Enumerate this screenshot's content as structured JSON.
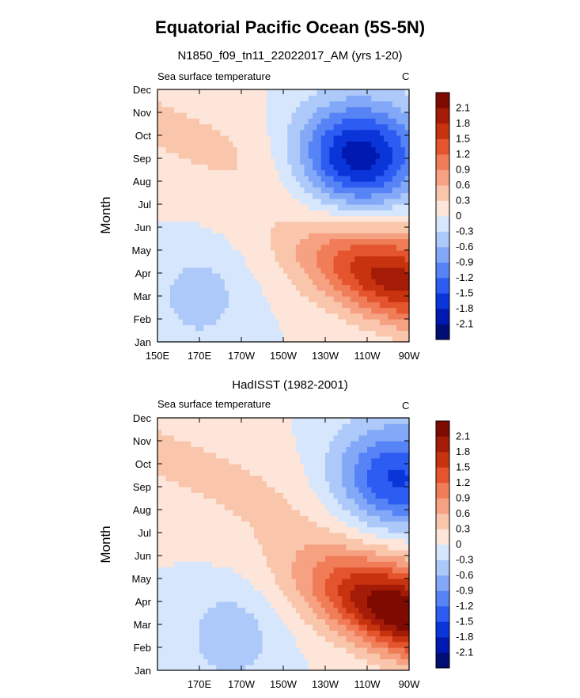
{
  "figure": {
    "title": "Equatorial Pacific Ocean (5S-5N)"
  },
  "chart_data": [
    {
      "type": "heatmap",
      "title": "N1850_f09_tn11_22022017_AM (yrs 1-20)",
      "left_label": "Sea surface temperature",
      "right_label": "C",
      "xlabel": "",
      "ylabel": "Month",
      "x_tick_labels": [
        "150E",
        "170E",
        "170W",
        "150W",
        "130W",
        "110W",
        "90W"
      ],
      "x_tick_lon": [
        150,
        170,
        190,
        210,
        230,
        250,
        270
      ],
      "xlim": [
        150,
        270
      ],
      "y_tick_labels": [
        "Jan",
        "Feb",
        "Mar",
        "Apr",
        "May",
        "Jun",
        "Jul",
        "Aug",
        "Sep",
        "Oct",
        "Nov",
        "Dec"
      ],
      "ylim": [
        1,
        12
      ],
      "colorbar_levels": [
        "2.1",
        "1.8",
        "1.5",
        "1.2",
        "0.9",
        "0.6",
        "0.3",
        "0",
        "-0.3",
        "-0.6",
        "-0.9",
        "-1.2",
        "-1.5",
        "-1.8",
        "-2.1"
      ],
      "unit": "C",
      "field": {
        "warm_amp": 1.8,
        "warm_lon": 262,
        "warm_month": 3.7,
        "cold_amp": -2.1,
        "cold_lon": 246,
        "cold_month": 9.0,
        "west_amp": -0.45,
        "west_lon": 170,
        "west_month": 3.0,
        "tilt": 0.025
      }
    },
    {
      "type": "heatmap",
      "title": "HadISST (1982-2001)",
      "left_label": "Sea surface temperature",
      "right_label": "C",
      "xlabel": "",
      "ylabel": "Month",
      "x_tick_labels": [
        "170E",
        "170W",
        "150W",
        "130W",
        "110W",
        "90W"
      ],
      "x_tick_lon": [
        170,
        190,
        210,
        230,
        250,
        270
      ],
      "xlim": [
        150,
        270
      ],
      "y_tick_labels": [
        "Jan",
        "Feb",
        "Mar",
        "Apr",
        "May",
        "Jun",
        "Jul",
        "Aug",
        "Sep",
        "Oct",
        "Nov",
        "Dec"
      ],
      "ylim": [
        1,
        12
      ],
      "colorbar_levels": [
        "2.1",
        "1.8",
        "1.5",
        "1.2",
        "0.9",
        "0.6",
        "0.3",
        "0",
        "-0.3",
        "-0.6",
        "-0.9",
        "-1.2",
        "-1.5",
        "-1.8",
        "-2.1"
      ],
      "unit": "C",
      "field": {
        "warm_amp": 2.3,
        "warm_lon": 266,
        "warm_month": 3.5,
        "cold_amp": -1.6,
        "cold_lon": 264,
        "cold_month": 9.3,
        "west_amp": -0.5,
        "west_lon": 185,
        "west_month": 2.5,
        "tilt": 0.03
      }
    }
  ],
  "colors": {
    "scale": [
      "#000d75",
      "#0019b0",
      "#0a35d9",
      "#2c5cf2",
      "#5683f5",
      "#83a8f7",
      "#adc9f9",
      "#d6e6fc",
      "#fde6d9",
      "#f9c6ac",
      "#f5a182",
      "#f07c58",
      "#e4552e",
      "#c8330f",
      "#a41c07",
      "#7e0b02"
    ]
  }
}
